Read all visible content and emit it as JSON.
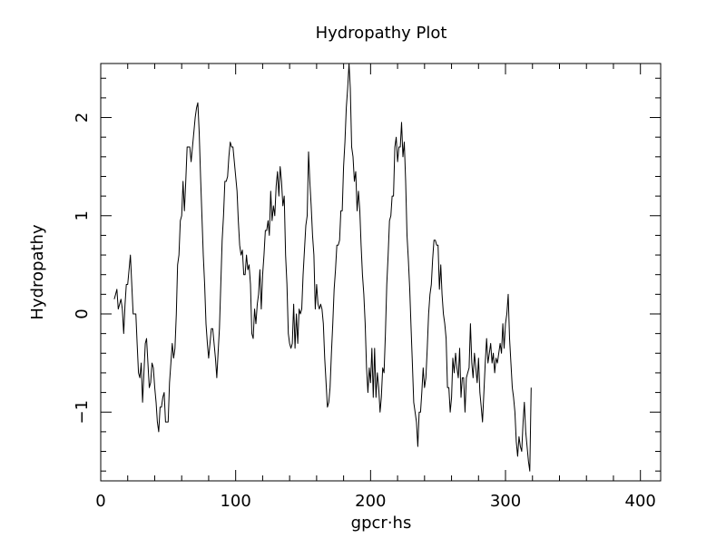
{
  "chart_data": {
    "type": "line",
    "title": "Hydropathy Plot",
    "xlabel": "gpcr·hs",
    "ylabel": "Hydropathy",
    "xlim": [
      0,
      415
    ],
    "ylim": [
      -1.7,
      2.55
    ],
    "x_ticks": [
      0,
      100,
      200,
      300,
      400
    ],
    "x_tick_labels": [
      "0",
      "100",
      "200",
      "300",
      "400"
    ],
    "y_ticks": [
      -1,
      0,
      1,
      2
    ],
    "y_tick_labels": [
      "−1",
      "0",
      "1",
      "2"
    ],
    "x_minor_step": 20,
    "y_minor_step": 0.2,
    "grid": false,
    "line_color": "#000000",
    "series": [
      {
        "x_start": 10,
        "x_step": 1,
        "values": [
          0.15,
          0.2,
          0.25,
          0.05,
          0.1,
          0.15,
          0.05,
          -0.2,
          0.1,
          0.3,
          0.3,
          0.45,
          0.6,
          0.3,
          0.0,
          0.0,
          0.0,
          -0.3,
          -0.6,
          -0.65,
          -0.5,
          -0.9,
          -0.6,
          -0.3,
          -0.25,
          -0.5,
          -0.75,
          -0.7,
          -0.5,
          -0.55,
          -0.75,
          -0.9,
          -1.1,
          -1.2,
          -0.95,
          -0.95,
          -0.85,
          -0.8,
          -1.1,
          -1.1,
          -1.1,
          -0.7,
          -0.5,
          -0.3,
          -0.45,
          -0.35,
          0.0,
          0.5,
          0.6,
          0.95,
          1.0,
          1.35,
          1.05,
          1.35,
          1.7,
          1.7,
          1.7,
          1.55,
          1.7,
          1.85,
          2.0,
          2.1,
          2.15,
          1.85,
          1.4,
          1.0,
          0.6,
          0.3,
          -0.1,
          -0.3,
          -0.45,
          -0.3,
          -0.15,
          -0.15,
          -0.3,
          -0.45,
          -0.65,
          -0.4,
          -0.15,
          0.3,
          0.75,
          1.0,
          1.35,
          1.35,
          1.4,
          1.6,
          1.75,
          1.7,
          1.7,
          1.55,
          1.4,
          1.25,
          0.95,
          0.7,
          0.6,
          0.65,
          0.4,
          0.4,
          0.6,
          0.45,
          0.5,
          0.3,
          -0.2,
          -0.25,
          0.05,
          -0.1,
          0.1,
          0.2,
          0.45,
          0.05,
          0.4,
          0.6,
          0.85,
          0.85,
          0.95,
          0.8,
          1.25,
          0.95,
          1.1,
          1.0,
          1.3,
          1.45,
          1.2,
          1.5,
          1.35,
          1.1,
          1.2,
          0.6,
          0.3,
          -0.2,
          -0.3,
          -0.35,
          -0.3,
          0.1,
          -0.35,
          0.0,
          -0.3,
          0.05,
          0.0,
          0.05,
          0.4,
          0.65,
          0.9,
          1.0,
          1.65,
          1.35,
          1.1,
          0.8,
          0.6,
          0.05,
          0.3,
          0.1,
          0.05,
          0.1,
          0.05,
          -0.1,
          -0.45,
          -0.7,
          -0.95,
          -0.9,
          -0.75,
          -0.4,
          -0.1,
          0.25,
          0.45,
          0.7,
          0.7,
          0.75,
          1.05,
          1.05,
          1.5,
          1.75,
          2.1,
          2.3,
          2.55,
          2.3,
          1.7,
          1.6,
          1.35,
          1.45,
          1.05,
          1.25,
          1.05,
          0.7,
          0.4,
          0.2,
          -0.1,
          -0.55,
          -0.8,
          -0.55,
          -0.7,
          -0.35,
          -0.85,
          -0.35,
          -0.85,
          -0.6,
          -0.75,
          -1.0,
          -0.85,
          -0.55,
          -0.6,
          -0.2,
          0.3,
          0.6,
          0.95,
          1.0,
          1.2,
          1.2,
          1.7,
          1.8,
          1.55,
          1.7,
          1.7,
          1.95,
          1.6,
          1.75,
          1.35,
          0.8,
          0.55,
          0.25,
          -0.15,
          -0.5,
          -0.9,
          -1.0,
          -1.1,
          -1.35,
          -1.0,
          -1.0,
          -0.8,
          -0.55,
          -0.75,
          -0.65,
          -0.35,
          0.0,
          0.2,
          0.3,
          0.55,
          0.75,
          0.75,
          0.7,
          0.7,
          0.25,
          0.5,
          0.2,
          0.0,
          -0.1,
          -0.25,
          -0.75,
          -0.75,
          -1.0,
          -0.85,
          -0.45,
          -0.6,
          -0.4,
          -0.55,
          -0.65,
          -0.35,
          -0.85,
          -0.65,
          -0.65,
          -1.0,
          -0.65,
          -0.6,
          -0.55,
          -0.1,
          -0.5,
          -0.65,
          -0.4,
          -0.55,
          -0.7,
          -0.45,
          -0.8,
          -0.95,
          -1.1,
          -0.8,
          -0.5,
          -0.25,
          -0.5,
          -0.4,
          -0.3,
          -0.5,
          -0.4,
          -0.6,
          -0.45,
          -0.5,
          -0.4,
          -0.3,
          -0.4,
          -0.1,
          -0.35,
          -0.1,
          0.0,
          0.2,
          -0.25,
          -0.5,
          -0.75,
          -0.85,
          -1.0,
          -1.3,
          -1.45,
          -1.25,
          -1.35,
          -1.4,
          -1.1,
          -0.9,
          -1.2,
          -1.35,
          -1.5,
          -1.6,
          -0.75
        ]
      }
    ]
  }
}
